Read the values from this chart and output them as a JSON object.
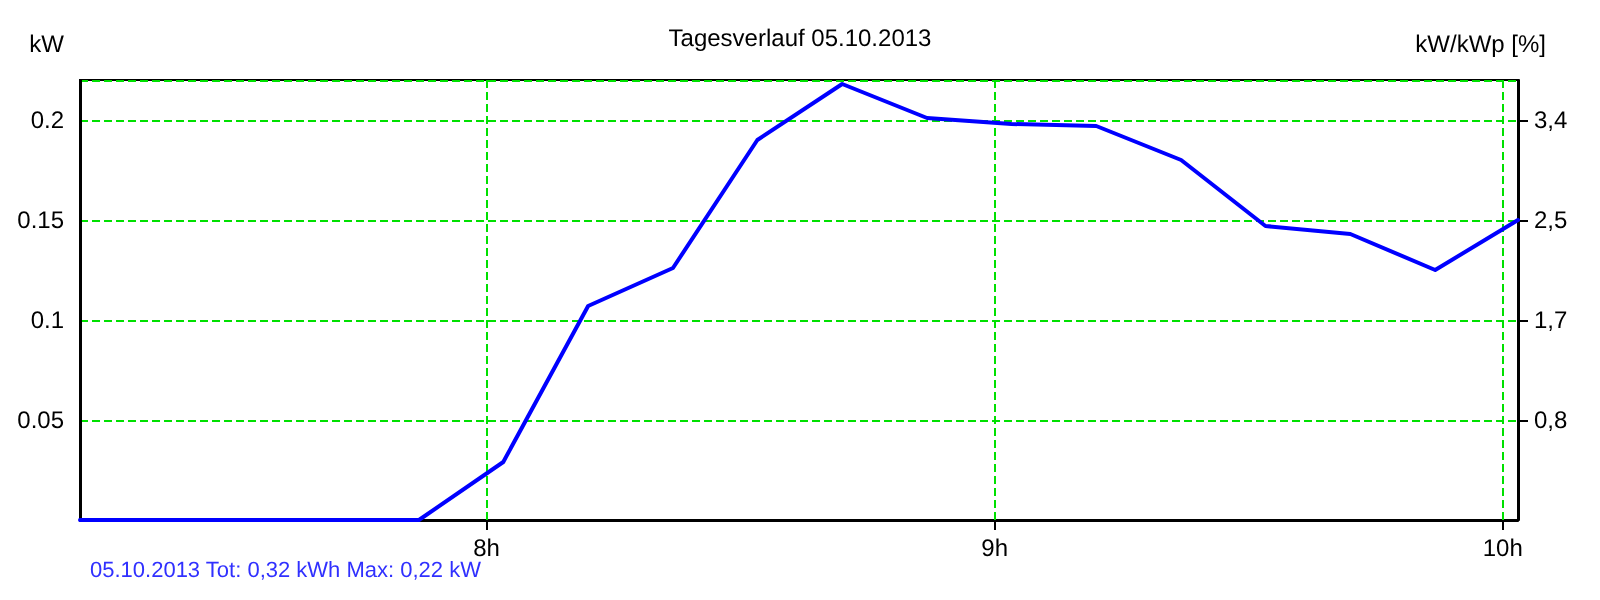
{
  "chart_data": {
    "type": "line",
    "title": "Tagesverlauf 05.10.2013",
    "ylabel": "kW",
    "y2label": "kW/kWp [%]",
    "annotations": [
      "05.10.2013 Tot: 0,32 kWh Max: 0,22 kW"
    ],
    "x": [
      7.2,
      7.867,
      8.033,
      8.2,
      8.367,
      8.533,
      8.7,
      8.867,
      9.033,
      9.2,
      9.367,
      9.533,
      9.7,
      9.867,
      10.03
    ],
    "series": [
      {
        "color": "#0000ff",
        "values": [
          0,
          0,
          0.029,
          0.107,
          0.126,
          0.19,
          0.218,
          0.201,
          0.198,
          0.197,
          0.18,
          0.147,
          0.143,
          0.125,
          0.15
        ]
      }
    ],
    "xlim": [
      7.2,
      10.03
    ],
    "xticks": [
      {
        "value": 8,
        "label": "8h"
      },
      {
        "value": 9,
        "label": "9h"
      },
      {
        "value": 10,
        "label": "10h"
      }
    ],
    "ylim": [
      0,
      0.22
    ],
    "yticks": [
      0.05,
      0.1,
      0.15,
      0.2
    ],
    "y2lim": [
      0,
      3.74
    ],
    "y2ticks": [
      {
        "value": 0.85,
        "label": "0,8"
      },
      {
        "value": 1.7,
        "label": "1,7"
      },
      {
        "value": 2.55,
        "label": "2,5"
      },
      {
        "value": 3.4,
        "label": "3,4"
      }
    ],
    "grid": true,
    "marker": "none",
    "line_style": "solid"
  }
}
